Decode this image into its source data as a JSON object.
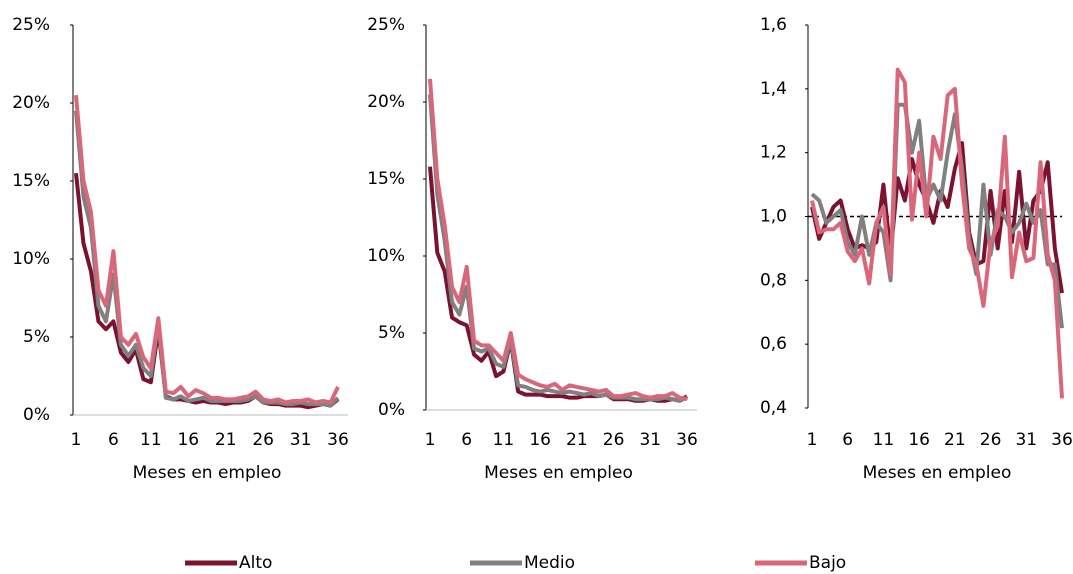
{
  "chart_data": [
    {
      "type": "line",
      "x_label": "Meses en empleo",
      "x": [
        1,
        2,
        3,
        4,
        5,
        6,
        7,
        8,
        9,
        10,
        11,
        12,
        13,
        14,
        15,
        16,
        17,
        18,
        19,
        20,
        21,
        22,
        23,
        24,
        25,
        26,
        27,
        28,
        29,
        30,
        31,
        32,
        33,
        34,
        35,
        36
      ],
      "xlim": [
        1,
        36
      ],
      "xticks": [
        1,
        6,
        11,
        16,
        21,
        26,
        31,
        36
      ],
      "ylim": [
        0,
        25
      ],
      "yticks": [
        {
          "value": 0,
          "label": "0%"
        },
        {
          "value": 5,
          "label": "5%"
        },
        {
          "value": 10,
          "label": "10%"
        },
        {
          "value": 15,
          "label": "15%"
        },
        {
          "value": 20,
          "label": "20%"
        },
        {
          "value": 25,
          "label": "25%"
        }
      ],
      "series": [
        {
          "name": "Alto",
          "color": "#7b1230",
          "values": [
            15.5,
            11,
            9.2,
            6,
            5.5,
            6,
            4,
            3.4,
            4.2,
            2.3,
            2.1,
            5.5,
            1.2,
            1.0,
            1.0,
            0.9,
            0.8,
            0.9,
            0.8,
            0.8,
            0.7,
            0.8,
            0.8,
            0.9,
            1.2,
            0.8,
            0.7,
            0.7,
            0.6,
            0.6,
            0.6,
            0.5,
            0.6,
            0.7,
            0.6,
            1.0
          ]
        },
        {
          "name": "Medio",
          "color": "#808080",
          "values": [
            19.5,
            14,
            12,
            7,
            6,
            9,
            4.5,
            3.8,
            4.5,
            3,
            2.5,
            6,
            1.1,
            1.0,
            1.2,
            0.9,
            1.0,
            1.1,
            0.9,
            0.9,
            0.9,
            0.9,
            0.9,
            1.0,
            1.2,
            0.8,
            0.8,
            0.8,
            0.7,
            0.7,
            0.8,
            0.7,
            0.7,
            0.7,
            0.6,
            1.1
          ]
        },
        {
          "name": "Bajo",
          "color": "#d9677a",
          "values": [
            20.5,
            15,
            13,
            8,
            7,
            10.5,
            5,
            4.5,
            5.2,
            3.7,
            3,
            6.2,
            1.5,
            1.4,
            1.8,
            1.2,
            1.6,
            1.4,
            1.1,
            1.1,
            1.0,
            1.0,
            1.1,
            1.2,
            1.5,
            1.0,
            0.9,
            1.0,
            0.8,
            0.9,
            0.9,
            1.0,
            0.8,
            0.9,
            0.8,
            1.8
          ]
        }
      ]
    },
    {
      "type": "line",
      "x_label": "Meses en empleo",
      "x": [
        1,
        2,
        3,
        4,
        5,
        6,
        7,
        8,
        9,
        10,
        11,
        12,
        13,
        14,
        15,
        16,
        17,
        18,
        19,
        20,
        21,
        22,
        23,
        24,
        25,
        26,
        27,
        28,
        29,
        30,
        31,
        32,
        33,
        34,
        35,
        36
      ],
      "xlim": [
        1,
        36
      ],
      "xticks": [
        1,
        6,
        11,
        16,
        21,
        26,
        31,
        36
      ],
      "ylim": [
        0,
        25
      ],
      "yticks": [
        {
          "value": 0,
          "label": "0%"
        },
        {
          "value": 5,
          "label": "5%"
        },
        {
          "value": 10,
          "label": "10%"
        },
        {
          "value": 15,
          "label": "15%"
        },
        {
          "value": 20,
          "label": "20%"
        },
        {
          "value": 25,
          "label": "25%"
        }
      ],
      "series": [
        {
          "name": "Alto",
          "color": "#7b1230",
          "values": [
            15.8,
            10.2,
            9,
            6,
            5.7,
            5.5,
            3.6,
            3.2,
            3.8,
            2.2,
            2.5,
            4.5,
            1.2,
            1.0,
            1.0,
            1.0,
            0.9,
            0.9,
            0.9,
            0.8,
            0.8,
            0.9,
            0.9,
            0.9,
            1.0,
            0.7,
            0.7,
            0.7,
            0.6,
            0.6,
            0.7,
            0.6,
            0.6,
            0.7,
            0.6,
            0.9
          ]
        },
        {
          "name": "Medio",
          "color": "#808080",
          "values": [
            20.5,
            14,
            11,
            7,
            6.2,
            8,
            4,
            3.8,
            4,
            3,
            2.8,
            4.6,
            1.6,
            1.5,
            1.3,
            1.2,
            1.3,
            1.2,
            1.1,
            1.2,
            1.1,
            1.0,
            1.1,
            0.9,
            1.0,
            0.8,
            0.8,
            0.8,
            0.7,
            0.7,
            0.7,
            0.7,
            0.8,
            0.7,
            0.6,
            0.8
          ]
        },
        {
          "name": "Bajo",
          "color": "#d9677a",
          "values": [
            21.5,
            15,
            12,
            8,
            7,
            9.3,
            4.5,
            4.2,
            4.2,
            3.7,
            3.2,
            5,
            2.3,
            2,
            1.8,
            1.6,
            1.5,
            1.7,
            1.3,
            1.6,
            1.5,
            1.4,
            1.3,
            1.2,
            1.3,
            0.9,
            0.9,
            1.0,
            1.1,
            0.9,
            0.8,
            0.9,
            0.9,
            1.1,
            0.8,
            0.7
          ]
        }
      ]
    },
    {
      "type": "line",
      "x_label": "Meses en empleo",
      "x": [
        1,
        2,
        3,
        4,
        5,
        6,
        7,
        8,
        9,
        10,
        11,
        12,
        13,
        14,
        15,
        16,
        17,
        18,
        19,
        20,
        21,
        22,
        23,
        24,
        25,
        26,
        27,
        28,
        29,
        30,
        31,
        32,
        33,
        34,
        35,
        36
      ],
      "xlim": [
        1,
        36
      ],
      "xticks": [
        1,
        6,
        11,
        16,
        21,
        26,
        31,
        36
      ],
      "ylim": [
        0.4,
        1.6
      ],
      "yticks": [
        {
          "value": 0.4,
          "label": "0,4"
        },
        {
          "value": 0.6,
          "label": "0,6"
        },
        {
          "value": 0.8,
          "label": "0,8"
        },
        {
          "value": 1.0,
          "label": "1,0"
        },
        {
          "value": 1.2,
          "label": "1,2"
        },
        {
          "value": 1.4,
          "label": "1,4"
        },
        {
          "value": 1.6,
          "label": "1,6"
        }
      ],
      "reference_line": 1.0,
      "series": [
        {
          "name": "Alto",
          "color": "#7b1230",
          "values": [
            1.03,
            0.93,
            0.98,
            1.03,
            1.05,
            0.96,
            0.9,
            0.91,
            0.9,
            0.92,
            1.1,
            0.88,
            1.12,
            1.05,
            1.18,
            1.1,
            1.05,
            0.98,
            1.08,
            1.03,
            1.15,
            1.23,
            0.95,
            0.85,
            0.86,
            1.08,
            0.9,
            1.08,
            0.92,
            1.14,
            0.9,
            1.05,
            1.08,
            1.17,
            0.9,
            0.76
          ]
        },
        {
          "name": "Medio",
          "color": "#808080",
          "values": [
            1.07,
            1.05,
            0.98,
            1.0,
            1.02,
            0.92,
            0.88,
            1.0,
            0.88,
            0.98,
            0.95,
            0.8,
            1.35,
            1.35,
            1.2,
            1.3,
            1.05,
            1.1,
            1.05,
            1.2,
            1.32,
            1.15,
            0.93,
            0.82,
            1.1,
            0.88,
            1.02,
            1.0,
            0.95,
            0.98,
            1.04,
            0.98,
            1.02,
            0.85,
            0.85,
            0.65
          ]
        },
        {
          "name": "Bajo",
          "color": "#d9677a",
          "values": [
            1.05,
            0.95,
            0.96,
            0.96,
            0.98,
            0.89,
            0.86,
            0.9,
            0.79,
            0.98,
            1.03,
            0.82,
            1.46,
            1.42,
            0.99,
            1.2,
            1.0,
            1.25,
            1.18,
            1.38,
            1.4,
            1.1,
            0.9,
            0.85,
            0.72,
            0.92,
            0.97,
            1.25,
            0.81,
            0.95,
            0.86,
            0.87,
            1.17,
            0.88,
            0.8,
            0.43
          ]
        }
      ]
    }
  ]
}
